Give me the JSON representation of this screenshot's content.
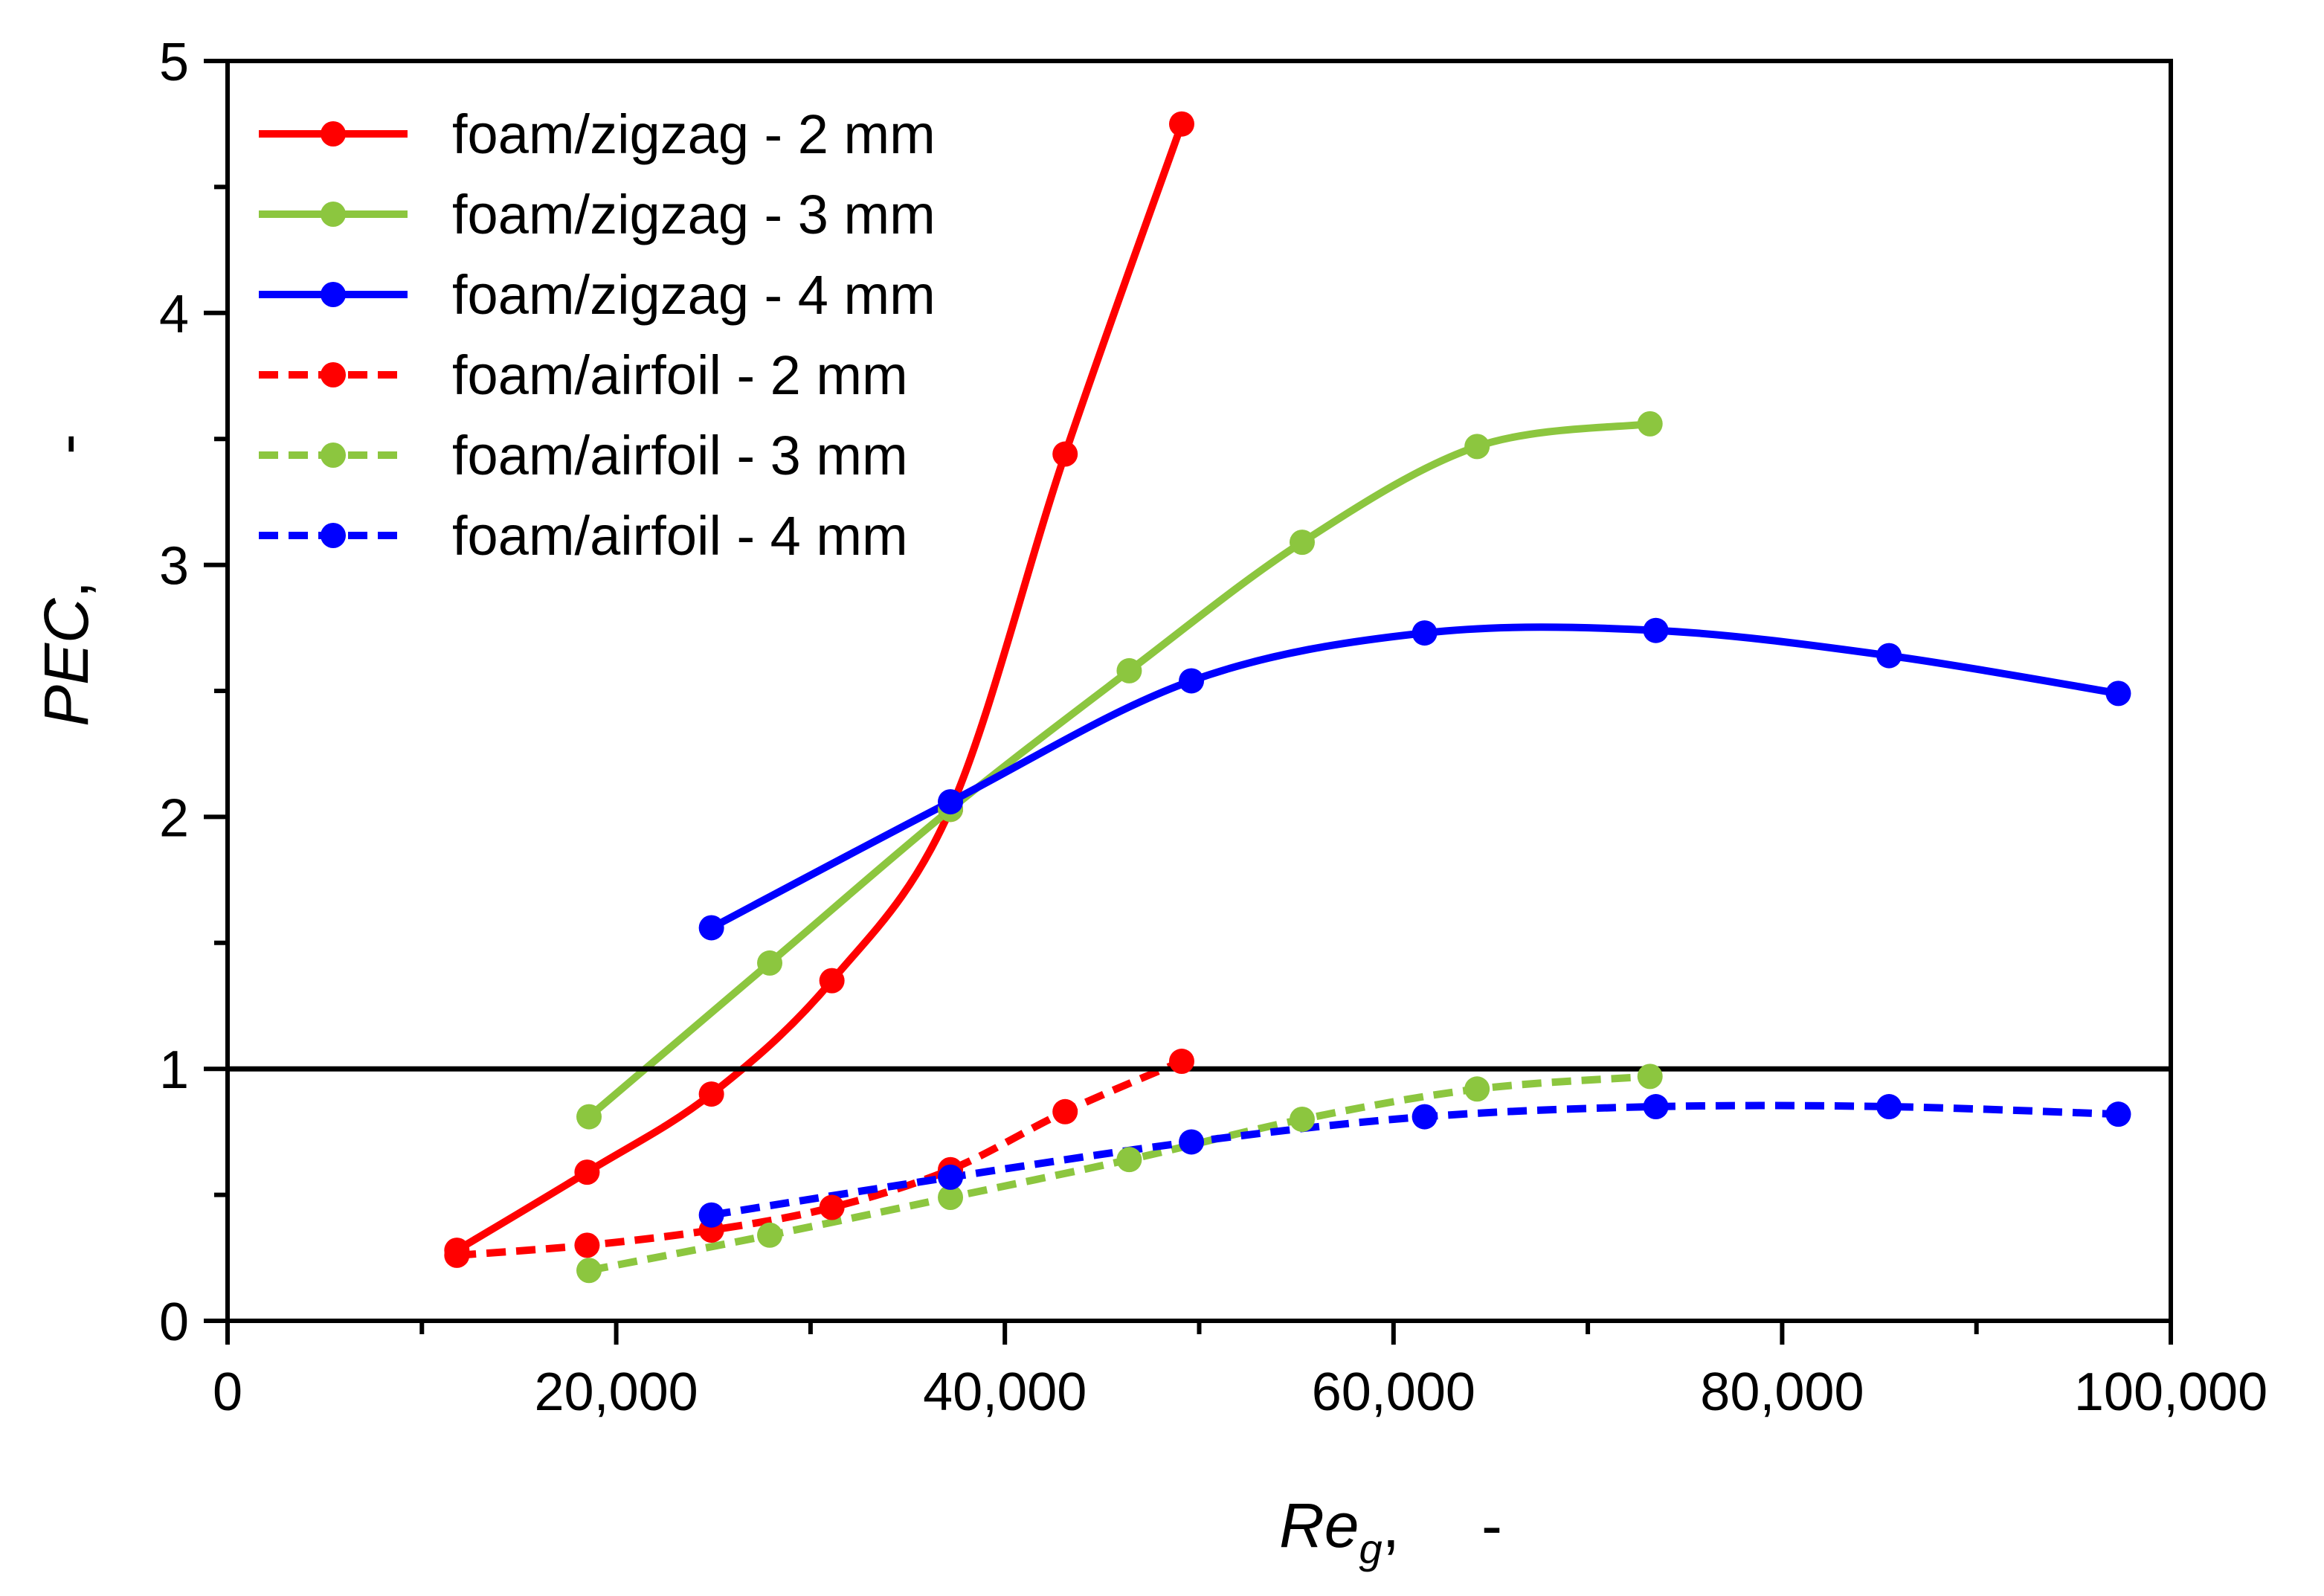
{
  "chart_data": {
    "type": "line",
    "title": "",
    "xlabel": {
      "main": "Re",
      "sub": "g",
      "suffix": ",",
      "unit": "-"
    },
    "ylabel": {
      "main": "PEC",
      "suffix": ",",
      "unit": "-"
    },
    "xlim": [
      0,
      100000
    ],
    "ylim": [
      0,
      5
    ],
    "x_ticks": [
      0,
      20000,
      40000,
      60000,
      80000,
      100000
    ],
    "x_tick_labels": [
      "0",
      "20,000",
      "40,000",
      "60,000",
      "80,000",
      "100,000"
    ],
    "y_ticks": [
      0,
      1,
      2,
      3,
      4,
      5
    ],
    "y_tick_labels": [
      "0",
      "1",
      "2",
      "3",
      "4",
      "5"
    ],
    "reference_line": {
      "y": 1,
      "color": "#000000"
    },
    "legend_position": "top-left",
    "series": [
      {
        "name": "foam/zigzag - 2 mm",
        "color": "#ff0000",
        "dash": "solid",
        "x": [
          11800,
          18500,
          24900,
          31100,
          37200,
          43100,
          49100
        ],
        "y": [
          0.28,
          0.59,
          0.9,
          1.35,
          2.03,
          3.44,
          4.75
        ]
      },
      {
        "name": "foam/zigzag - 3 mm",
        "color": "#8cc63f",
        "dash": "solid",
        "x": [
          18600,
          27900,
          37200,
          46400,
          55300,
          64300,
          73200
        ],
        "y": [
          0.81,
          1.42,
          2.03,
          2.58,
          3.09,
          3.47,
          3.56
        ]
      },
      {
        "name": "foam/zigzag - 4 mm",
        "color": "#0000ff",
        "dash": "solid",
        "x": [
          24900,
          37200,
          49600,
          61600,
          73500,
          85500,
          97300
        ],
        "y": [
          1.56,
          2.06,
          2.54,
          2.73,
          2.74,
          2.64,
          2.49
        ]
      },
      {
        "name": "foam/airfoil - 2 mm",
        "color": "#ff0000",
        "dash": "dashed",
        "x": [
          11800,
          18500,
          24900,
          31100,
          37200,
          43100,
          49100
        ],
        "y": [
          0.26,
          0.3,
          0.36,
          0.45,
          0.6,
          0.83,
          1.03
        ]
      },
      {
        "name": "foam/airfoil - 3 mm",
        "color": "#8cc63f",
        "dash": "dashed",
        "x": [
          18600,
          27900,
          37200,
          46400,
          55300,
          64300,
          73200
        ],
        "y": [
          0.2,
          0.34,
          0.49,
          0.64,
          0.8,
          0.92,
          0.97
        ]
      },
      {
        "name": "foam/airfoil - 4 mm",
        "color": "#0000ff",
        "dash": "dashed",
        "x": [
          24900,
          37200,
          49600,
          61600,
          73500,
          85500,
          97300
        ],
        "y": [
          0.42,
          0.57,
          0.71,
          0.81,
          0.85,
          0.85,
          0.82
        ]
      }
    ]
  }
}
